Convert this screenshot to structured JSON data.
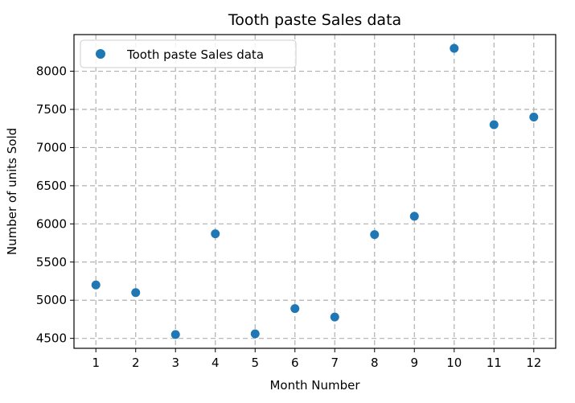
{
  "chart_data": {
    "type": "scatter",
    "title": "Tooth paste Sales data",
    "xlabel": "Month Number",
    "ylabel": "Number of units Sold",
    "x": [
      1,
      2,
      3,
      4,
      5,
      6,
      7,
      8,
      9,
      10,
      11,
      12
    ],
    "xticks": [
      "1",
      "2",
      "3",
      "4",
      "5",
      "6",
      "7",
      "8",
      "9",
      "10",
      "11",
      "12"
    ],
    "yticks": [
      "4500",
      "5000",
      "5500",
      "6000",
      "6500",
      "7000",
      "7500",
      "8000"
    ],
    "xlim": [
      0.45,
      12.55
    ],
    "ylim": [
      4370,
      8480
    ],
    "grid": true,
    "grid_style": "dashed",
    "legend_position": "upper-left",
    "series": [
      {
        "name": "Tooth paste Sales data",
        "color": "#1f77b4",
        "values": [
          5200,
          5100,
          4550,
          5870,
          4560,
          4890,
          4780,
          5860,
          6100,
          8300,
          7300,
          7400
        ]
      }
    ]
  }
}
